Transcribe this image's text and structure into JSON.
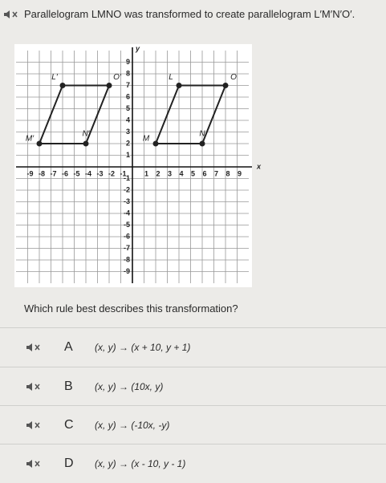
{
  "question": "Parallelogram LMNO was transformed to create parallelogram L′M′N′O′.",
  "graph": {
    "xlim": [
      -10,
      10
    ],
    "ylim": [
      -10,
      10
    ],
    "xticks": [
      -9,
      -8,
      -7,
      -6,
      -5,
      -4,
      -3,
      -2,
      -1,
      1,
      2,
      3,
      4,
      5,
      6,
      7,
      8,
      9
    ],
    "yticks": [
      -9,
      -8,
      -7,
      -6,
      -5,
      -4,
      -3,
      -2,
      -1,
      1,
      2,
      3,
      4,
      5,
      6,
      7,
      8,
      9
    ],
    "x_label": "x",
    "y_label": "y",
    "shapes": [
      {
        "points": [
          {
            "label": "L",
            "x": 4,
            "y": 7
          },
          {
            "label": "O",
            "x": 8,
            "y": 7
          },
          {
            "label": "N",
            "x": 6,
            "y": 2
          },
          {
            "label": "M",
            "x": 2,
            "y": 2
          }
        ]
      },
      {
        "points": [
          {
            "label": "L′",
            "x": -6,
            "y": 7
          },
          {
            "label": "O′",
            "x": -2,
            "y": 7
          },
          {
            "label": "N′",
            "x": -4,
            "y": 2
          },
          {
            "label": "M′",
            "x": -8,
            "y": 2
          }
        ]
      }
    ]
  },
  "prompt": "Which rule best describes this transformation?",
  "options": [
    {
      "letter": "A",
      "text": "(x, y) → (x + 10, y + 1)"
    },
    {
      "letter": "B",
      "text": "(x, y) → (10x, y)"
    },
    {
      "letter": "C",
      "text": "(x, y) → (-10x, -y)"
    },
    {
      "letter": "D",
      "text": "(x, y) → (x - 10, y - 1)"
    }
  ]
}
